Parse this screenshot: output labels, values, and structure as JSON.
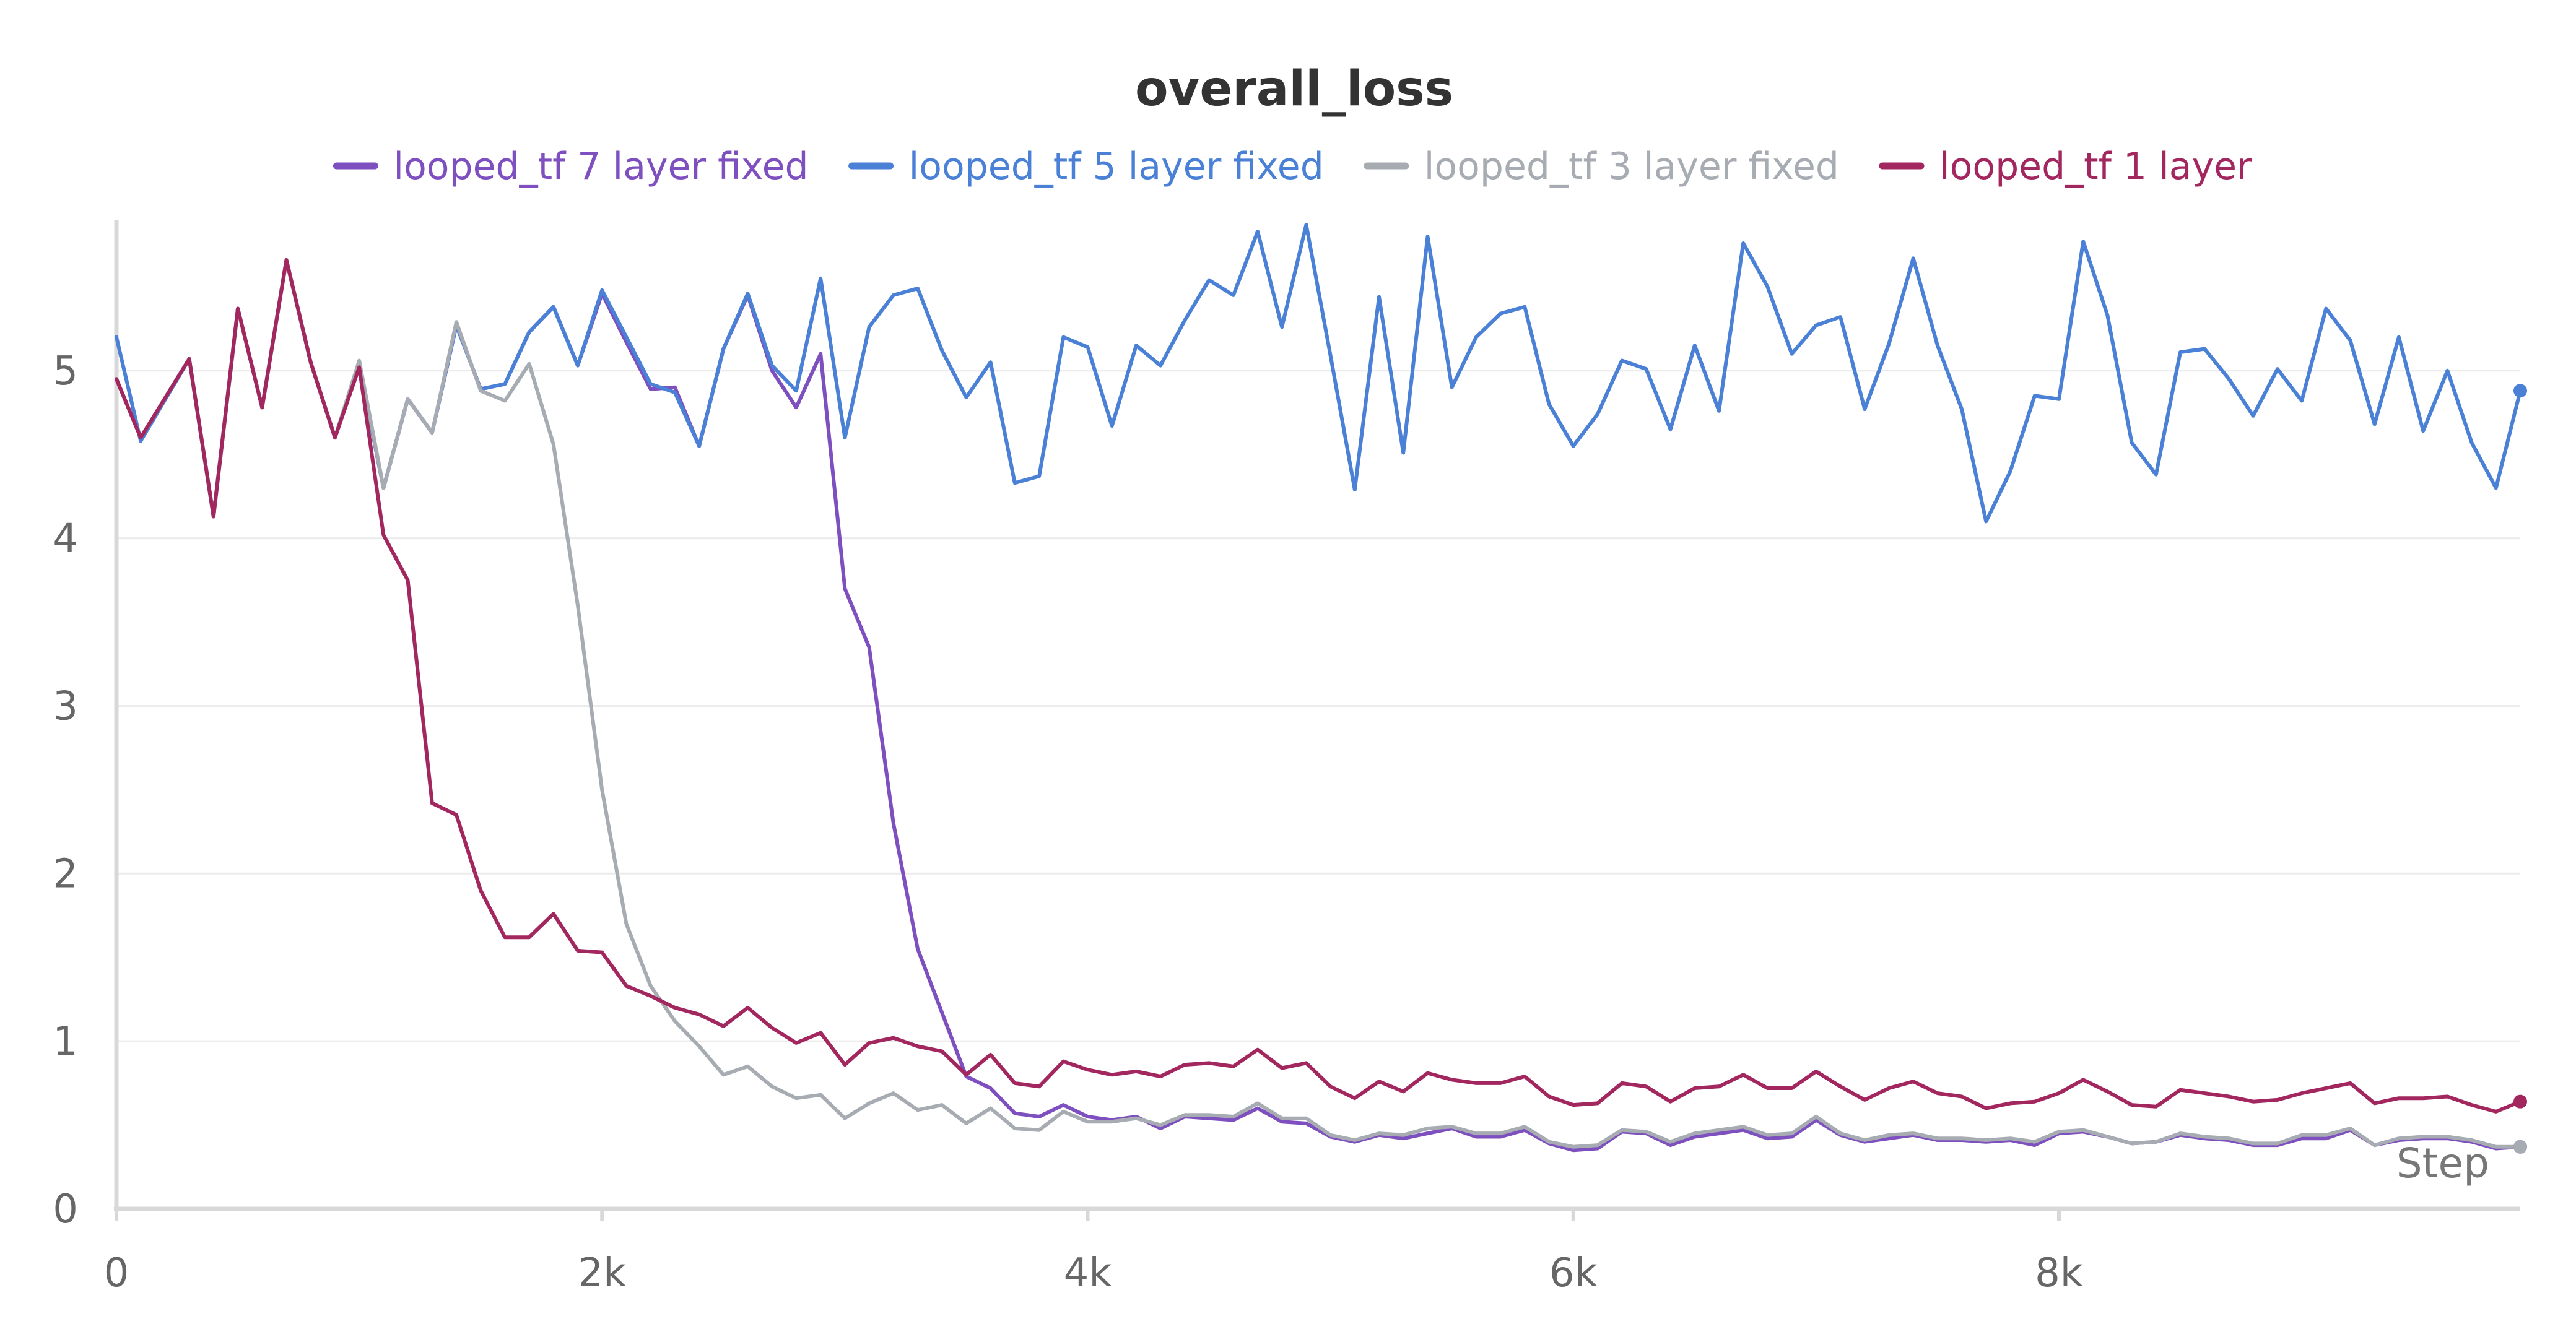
{
  "chart_data": {
    "type": "line",
    "title": "overall_loss",
    "xlabel": "Step",
    "ylabel": "",
    "xlim": [
      0,
      9900
    ],
    "ylim": [
      0,
      5.9
    ],
    "x_ticks": [
      0,
      2000,
      4000,
      6000,
      8000
    ],
    "x_tick_labels": [
      "0",
      "2k",
      "4k",
      "6k",
      "8k"
    ],
    "y_ticks": [
      0,
      1,
      2,
      3,
      4,
      5
    ],
    "y_tick_labels": [
      "0",
      "1",
      "2",
      "3",
      "4",
      "5"
    ],
    "grid": true,
    "legend_position": "top",
    "series": [
      {
        "name": "looped_tf 7 layer fixed",
        "color": "#7e4fbf",
        "x": [
          0,
          100,
          300,
          400,
          500,
          600,
          700,
          800,
          900,
          1000,
          1100,
          1200,
          1300,
          1400,
          1500,
          1600,
          1700,
          1800,
          1900,
          2000,
          2100,
          2200,
          2300,
          2400,
          2500,
          2600,
          2700,
          2800,
          2900,
          3000,
          3100,
          3200,
          3300,
          3400,
          3500,
          3600,
          3700,
          3800,
          3900,
          4000,
          4100,
          4200,
          4300,
          4400,
          4500,
          4600,
          4700,
          4800,
          4900,
          5000,
          5100,
          5200,
          5300,
          5400,
          5500,
          5600,
          5700,
          5800,
          5900,
          6000,
          6100,
          6200,
          6300,
          6400,
          6500,
          6600,
          6700,
          6800,
          6900,
          7000,
          7100,
          7200,
          7300,
          7400,
          7500,
          7600,
          7700,
          7800,
          7900,
          8000,
          8100,
          8200,
          8300,
          8400,
          8500,
          8600,
          8700,
          8800,
          8900,
          9000,
          9100,
          9200,
          9300,
          9400,
          9500,
          9600,
          9700,
          9800,
          9900
        ],
        "y": [
          4.95,
          4.6,
          5.07,
          4.13,
          5.37,
          4.78,
          5.66,
          5.05,
          4.6,
          5.03,
          4.3,
          4.83,
          4.63,
          5.27,
          4.89,
          4.92,
          5.23,
          5.38,
          5.03,
          5.46,
          5.17,
          4.89,
          4.9,
          4.55,
          5.13,
          5.45,
          5.0,
          4.78,
          5.1,
          3.7,
          3.35,
          2.3,
          1.55,
          1.17,
          0.79,
          0.72,
          0.57,
          0.55,
          0.62,
          0.55,
          0.53,
          0.55,
          0.48,
          0.55,
          0.54,
          0.53,
          0.6,
          0.52,
          0.51,
          0.43,
          0.4,
          0.44,
          0.42,
          0.45,
          0.48,
          0.43,
          0.43,
          0.47,
          0.39,
          0.35,
          0.36,
          0.46,
          0.45,
          0.38,
          0.43,
          0.45,
          0.47,
          0.42,
          0.43,
          0.53,
          0.44,
          0.4,
          0.42,
          0.44,
          0.41,
          0.41,
          0.4,
          0.41,
          0.38,
          0.45,
          0.46,
          0.43,
          0.39,
          0.4,
          0.44,
          0.42,
          0.41,
          0.38,
          0.38,
          0.42,
          0.42,
          0.47,
          0.38,
          0.41,
          0.42,
          0.42,
          0.4,
          0.36,
          0.37
        ]
      },
      {
        "name": "looped_tf 5 layer fixed",
        "color": "#4a80d6",
        "x": [
          0,
          100,
          300,
          400,
          500,
          600,
          700,
          800,
          900,
          1000,
          1100,
          1200,
          1300,
          1400,
          1500,
          1600,
          1700,
          1800,
          1900,
          2000,
          2100,
          2200,
          2300,
          2400,
          2500,
          2600,
          2700,
          2800,
          2900,
          3000,
          3100,
          3200,
          3300,
          3400,
          3500,
          3600,
          3700,
          3800,
          3900,
          4000,
          4100,
          4200,
          4300,
          4400,
          4500,
          4600,
          4700,
          4800,
          4900,
          5000,
          5100,
          5200,
          5300,
          5400,
          5500,
          5600,
          5700,
          5800,
          5900,
          6000,
          6100,
          6200,
          6300,
          6400,
          6500,
          6600,
          6700,
          6800,
          6900,
          7000,
          7100,
          7200,
          7300,
          7400,
          7500,
          7600,
          7700,
          7800,
          7900,
          8000,
          8100,
          8200,
          8300,
          8400,
          8500,
          8600,
          8700,
          8800,
          8900,
          9000,
          9100,
          9200,
          9300,
          9400,
          9500,
          9600,
          9700,
          9800,
          9900
        ],
        "y": [
          5.2,
          4.58,
          5.07,
          4.13,
          5.37,
          4.78,
          5.66,
          5.05,
          4.6,
          5.03,
          4.3,
          4.83,
          4.63,
          5.27,
          4.89,
          4.92,
          5.23,
          5.38,
          5.03,
          5.48,
          5.2,
          4.92,
          4.87,
          4.55,
          5.13,
          5.46,
          5.03,
          4.88,
          5.55,
          4.6,
          5.26,
          5.45,
          5.49,
          5.12,
          4.84,
          5.05,
          4.33,
          4.37,
          5.2,
          5.14,
          4.67,
          5.15,
          5.03,
          5.3,
          5.54,
          5.45,
          5.83,
          5.26,
          5.87,
          5.09,
          4.29,
          5.44,
          4.51,
          5.8,
          4.9,
          5.2,
          5.34,
          5.38,
          4.8,
          4.55,
          4.74,
          5.06,
          5.01,
          4.65,
          5.15,
          4.76,
          5.76,
          5.5,
          5.1,
          5.27,
          5.32,
          4.77,
          5.16,
          5.67,
          5.15,
          4.77,
          4.1,
          4.4,
          4.85,
          4.83,
          5.77,
          5.33,
          4.57,
          4.38,
          5.11,
          5.13,
          4.95,
          4.73,
          5.01,
          4.82,
          5.37,
          5.18,
          4.68,
          5.2,
          4.64,
          5.0,
          4.57,
          4.3,
          4.88
        ]
      },
      {
        "name": "looped_tf 3 layer fixed",
        "color": "#a7abb2",
        "x": [
          0,
          100,
          300,
          400,
          500,
          600,
          700,
          800,
          900,
          1000,
          1100,
          1200,
          1300,
          1400,
          1500,
          1600,
          1700,
          1800,
          1900,
          2000,
          2100,
          2200,
          2300,
          2400,
          2500,
          2600,
          2700,
          2800,
          2900,
          3000,
          3100,
          3200,
          3300,
          3400,
          3500,
          3600,
          3700,
          3800,
          3900,
          4000,
          4100,
          4200,
          4300,
          4400,
          4500,
          4600,
          4700,
          4800,
          4900,
          5000,
          5100,
          5200,
          5300,
          5400,
          5500,
          5600,
          5700,
          5800,
          5900,
          6000,
          6100,
          6200,
          6300,
          6400,
          6500,
          6600,
          6700,
          6800,
          6900,
          7000,
          7100,
          7200,
          7300,
          7400,
          7500,
          7600,
          7700,
          7800,
          7900,
          8000,
          8100,
          8200,
          8300,
          8400,
          8500,
          8600,
          8700,
          8800,
          8900,
          9000,
          9100,
          9200,
          9300,
          9400,
          9500,
          9600,
          9700,
          9800,
          9900
        ],
        "y": [
          4.95,
          4.6,
          5.07,
          4.13,
          5.37,
          4.78,
          5.66,
          5.05,
          4.6,
          5.06,
          4.3,
          4.83,
          4.63,
          5.29,
          4.88,
          4.82,
          5.04,
          4.56,
          3.6,
          2.5,
          1.7,
          1.33,
          1.12,
          0.97,
          0.8,
          0.85,
          0.73,
          0.66,
          0.68,
          0.54,
          0.63,
          0.69,
          0.59,
          0.62,
          0.51,
          0.6,
          0.48,
          0.47,
          0.58,
          0.52,
          0.52,
          0.54,
          0.5,
          0.56,
          0.56,
          0.55,
          0.63,
          0.54,
          0.54,
          0.44,
          0.41,
          0.45,
          0.44,
          0.48,
          0.49,
          0.45,
          0.45,
          0.49,
          0.4,
          0.37,
          0.38,
          0.47,
          0.46,
          0.4,
          0.45,
          0.47,
          0.49,
          0.44,
          0.45,
          0.55,
          0.45,
          0.41,
          0.44,
          0.45,
          0.42,
          0.42,
          0.41,
          0.42,
          0.4,
          0.46,
          0.47,
          0.43,
          0.39,
          0.4,
          0.45,
          0.43,
          0.42,
          0.39,
          0.39,
          0.44,
          0.44,
          0.48,
          0.38,
          0.42,
          0.43,
          0.43,
          0.41,
          0.37,
          0.37
        ]
      },
      {
        "name": "looped_tf 1 layer",
        "color": "#a3275f",
        "x": [
          0,
          100,
          300,
          400,
          500,
          600,
          700,
          800,
          900,
          1000,
          1100,
          1200,
          1300,
          1400,
          1500,
          1600,
          1700,
          1800,
          1900,
          2000,
          2100,
          2200,
          2300,
          2400,
          2500,
          2600,
          2700,
          2800,
          2900,
          3000,
          3100,
          3200,
          3300,
          3400,
          3500,
          3600,
          3700,
          3800,
          3900,
          4000,
          4100,
          4200,
          4300,
          4400,
          4500,
          4600,
          4700,
          4800,
          4900,
          5000,
          5100,
          5200,
          5300,
          5400,
          5500,
          5600,
          5700,
          5800,
          5900,
          6000,
          6100,
          6200,
          6300,
          6400,
          6500,
          6600,
          6700,
          6800,
          6900,
          7000,
          7100,
          7200,
          7300,
          7400,
          7500,
          7600,
          7700,
          7800,
          7900,
          8000,
          8100,
          8200,
          8300,
          8400,
          8500,
          8600,
          8700,
          8800,
          8900,
          9000,
          9100,
          9200,
          9300,
          9400,
          9500,
          9600,
          9700,
          9800,
          9900
        ],
        "y": [
          4.95,
          4.6,
          5.07,
          4.13,
          5.37,
          4.78,
          5.66,
          5.05,
          4.6,
          5.02,
          4.02,
          3.75,
          2.42,
          2.35,
          1.9,
          1.62,
          1.62,
          1.76,
          1.54,
          1.53,
          1.33,
          1.27,
          1.2,
          1.16,
          1.09,
          1.2,
          1.08,
          0.99,
          1.05,
          0.86,
          0.99,
          1.02,
          0.97,
          0.94,
          0.8,
          0.92,
          0.75,
          0.73,
          0.88,
          0.83,
          0.8,
          0.82,
          0.79,
          0.86,
          0.87,
          0.85,
          0.95,
          0.84,
          0.87,
          0.73,
          0.66,
          0.76,
          0.7,
          0.81,
          0.77,
          0.75,
          0.75,
          0.79,
          0.67,
          0.62,
          0.63,
          0.75,
          0.73,
          0.64,
          0.72,
          0.73,
          0.8,
          0.72,
          0.72,
          0.82,
          0.73,
          0.65,
          0.72,
          0.76,
          0.69,
          0.67,
          0.6,
          0.63,
          0.64,
          0.69,
          0.77,
          0.7,
          0.62,
          0.61,
          0.71,
          0.69,
          0.67,
          0.64,
          0.65,
          0.69,
          0.72,
          0.75,
          0.63,
          0.66,
          0.66,
          0.67,
          0.62,
          0.58,
          0.64
        ]
      }
    ]
  }
}
